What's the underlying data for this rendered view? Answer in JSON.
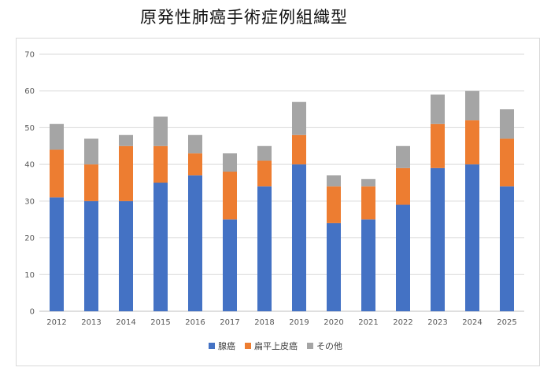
{
  "chart_data": {
    "type": "bar",
    "stacked": true,
    "title": "原発性肺癌手術症例組織型",
    "categories": [
      "2012",
      "2013",
      "2014",
      "2015",
      "2016",
      "2017",
      "2018",
      "2019",
      "2020",
      "2021",
      "2022",
      "2023",
      "2024",
      "2025"
    ],
    "series": [
      {
        "name": "腺癌",
        "color": "#4472C4",
        "values": [
          31,
          30,
          30,
          35,
          37,
          25,
          34,
          40,
          24,
          25,
          29,
          39,
          40,
          34
        ]
      },
      {
        "name": "扁平上皮癌",
        "color": "#ED7D31",
        "values": [
          13,
          10,
          15,
          10,
          6,
          13,
          7,
          8,
          10,
          9,
          10,
          12,
          12,
          13
        ]
      },
      {
        "name": "その他",
        "color": "#A5A5A5",
        "values": [
          7,
          7,
          3,
          8,
          5,
          5,
          4,
          9,
          3,
          2,
          6,
          8,
          8,
          8
        ]
      }
    ],
    "ylim": [
      0,
      70
    ],
    "yticks": [
      0,
      10,
      20,
      30,
      40,
      50,
      60,
      70
    ],
    "grid": true,
    "legend_position": "bottom"
  }
}
